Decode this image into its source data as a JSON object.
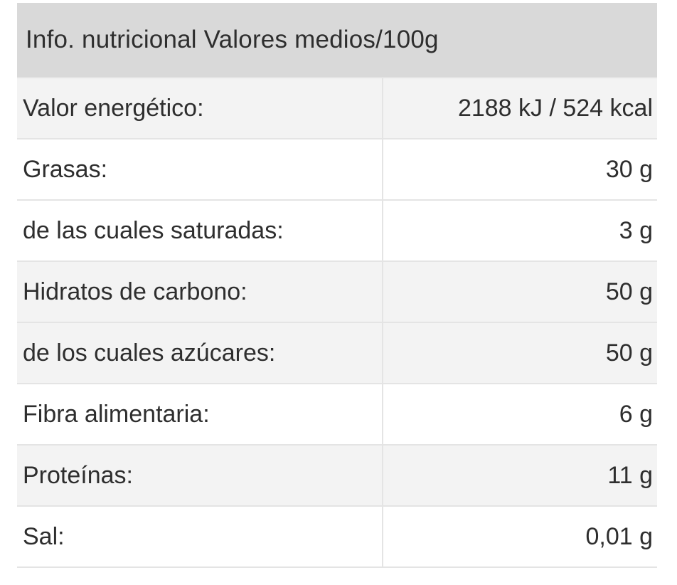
{
  "colors": {
    "page_bg": "#ffffff",
    "header_bg": "#d9d9d9",
    "row_shaded_bg": "#f3f3f3",
    "row_bg": "#ffffff",
    "border": "#e4e4e4",
    "text": "#2e2e2e"
  },
  "table": {
    "title": "Info. nutricional Valores medios/100g",
    "columns": [
      "nutrient",
      "amount_per_100g"
    ],
    "rows": [
      {
        "label": "Valor energético:",
        "value": "2188 kJ / 524 kcal",
        "shaded": true
      },
      {
        "label": "Grasas:",
        "value": "30 g",
        "shaded": false
      },
      {
        "label": "de las cuales saturadas:",
        "value": "3 g",
        "shaded": false
      },
      {
        "label": "Hidratos de carbono:",
        "value": "50 g",
        "shaded": true
      },
      {
        "label": "de los cuales azúcares:",
        "value": "50 g",
        "shaded": true
      },
      {
        "label": "Fibra alimentaria:",
        "value": "6 g",
        "shaded": false
      },
      {
        "label": "Proteínas:",
        "value": "11 g",
        "shaded": true
      },
      {
        "label": "Sal:",
        "value": "0,01 g",
        "shaded": false
      }
    ]
  }
}
